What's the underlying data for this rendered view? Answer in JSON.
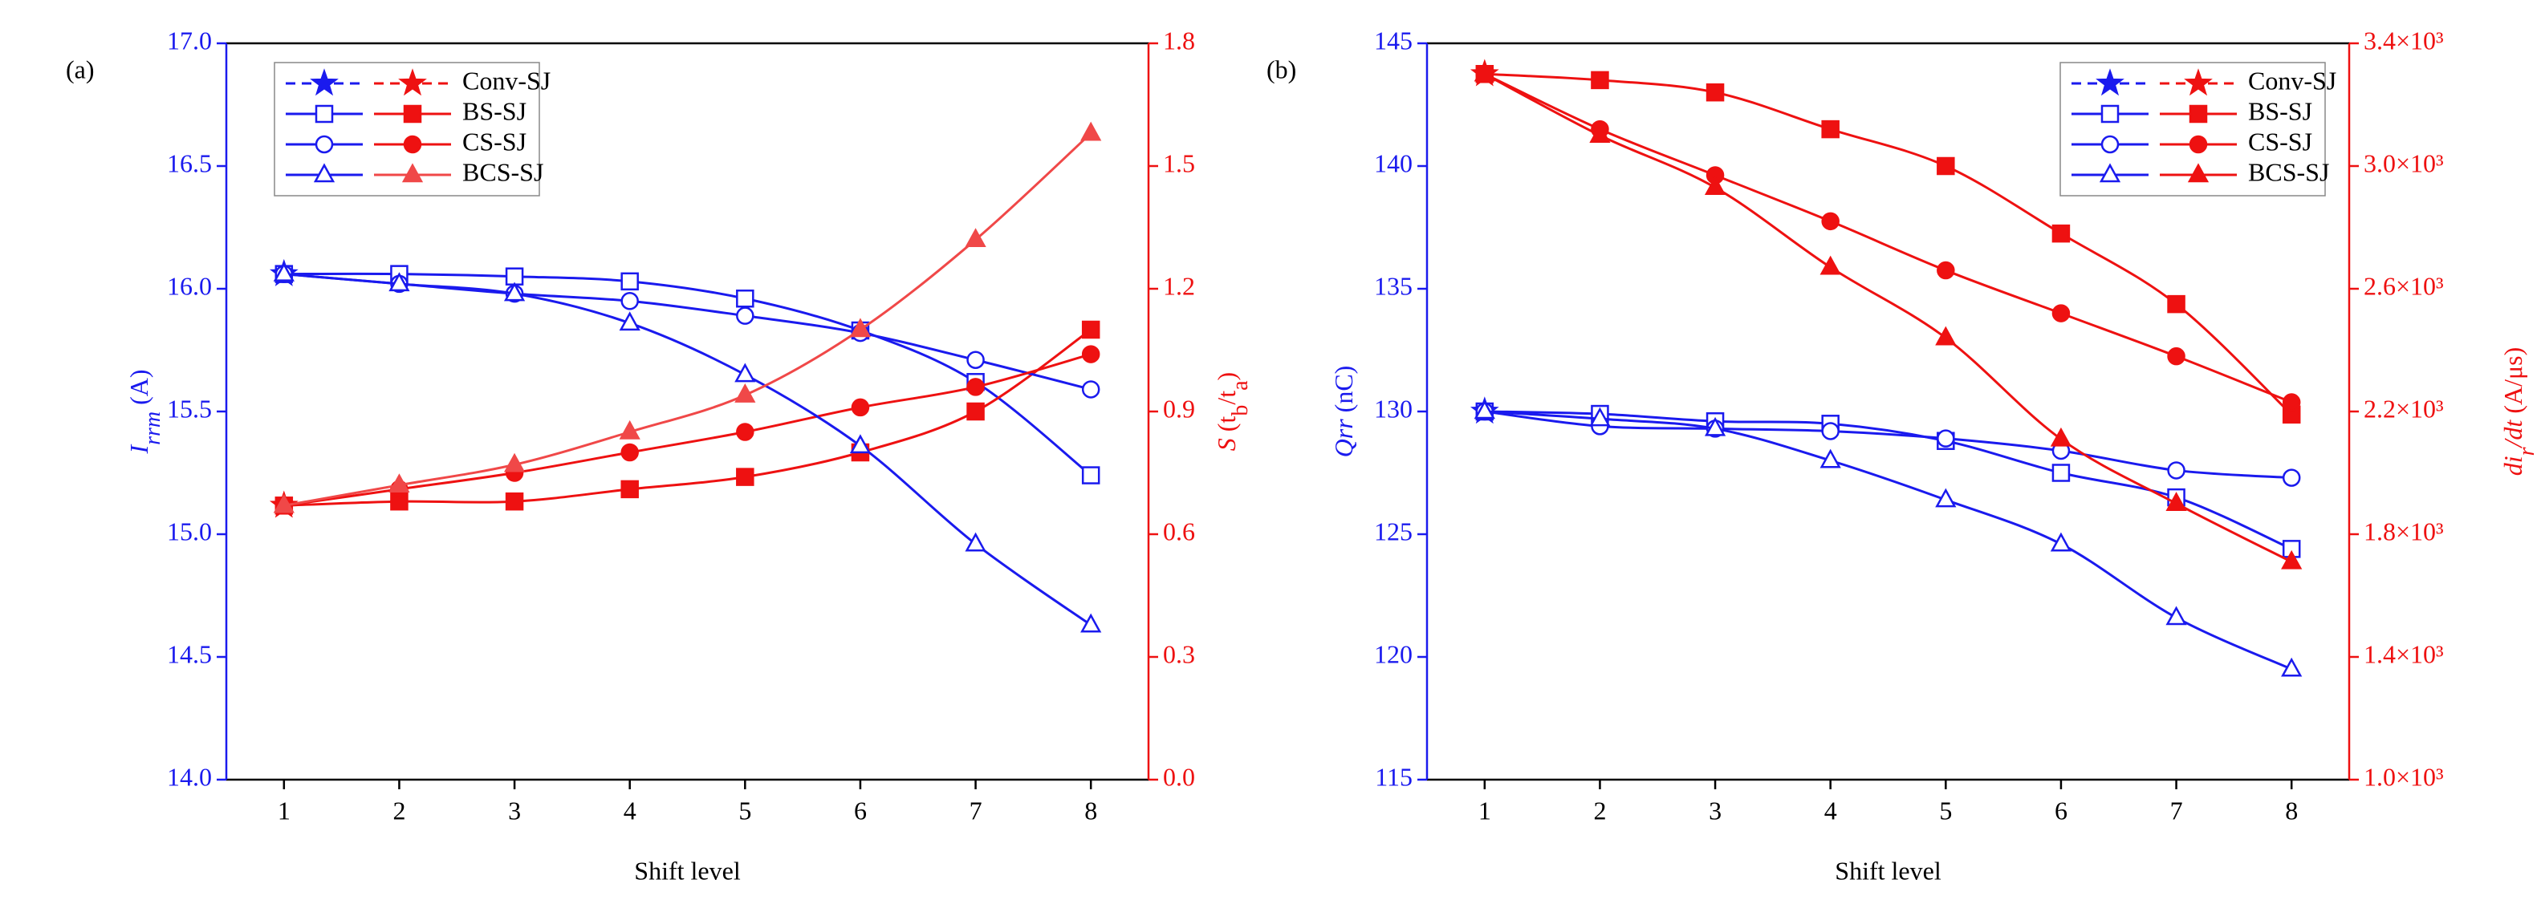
{
  "chart_data": [
    {
      "type": "line",
      "panel_label": "(a)",
      "xlabel": "Shift level",
      "ylabel": [
        {
          "text": "I",
          "italic": true
        },
        {
          "text": "rrm",
          "italic": true,
          "sub": true
        },
        {
          "text": " (A)"
        }
      ],
      "y2label": [
        {
          "text": "S",
          "italic": true
        },
        {
          "text": " (t"
        },
        {
          "text": "b",
          "sub": true
        },
        {
          "text": "/t"
        },
        {
          "text": "a",
          "sub": true
        },
        {
          "text": ")"
        }
      ],
      "x": [
        1,
        2,
        3,
        4,
        5,
        6,
        7,
        8
      ],
      "xlim": [
        0.5,
        8.5
      ],
      "xticks": [
        1,
        2,
        3,
        4,
        5,
        6,
        7,
        8
      ],
      "ylim": [
        14,
        17
      ],
      "yticks": [
        {
          "value": 14,
          "label": "14.0"
        },
        14.5,
        {
          "value": 15,
          "label": "15.0"
        },
        15.5,
        {
          "value": 16,
          "label": "16.0"
        },
        16.5,
        {
          "value": 17,
          "label": "17.0"
        }
      ],
      "y2lim": [
        0,
        1.8
      ],
      "y2ticks": [
        {
          "value": 0,
          "label": "0.0"
        },
        0.3,
        0.6,
        0.9,
        1.2,
        1.5,
        1.8
      ],
      "ycolor": "#1a1aee",
      "y2color": "#ee1111",
      "legend": "upper left",
      "series": [
        {
          "name": "Conv-SJ",
          "color": "#1a1aee",
          "marker": "star",
          "filled": true,
          "dashed": true,
          "values": [
            16.06,
            null,
            null,
            null,
            null,
            null,
            null,
            null
          ]
        },
        {
          "name": "Conv-SJ",
          "color": "#ee1111",
          "marker": "star",
          "filled": true,
          "dashed": true,
          "axis": "y2",
          "values": [
            0.67,
            null,
            null,
            null,
            null,
            null,
            null,
            null
          ]
        },
        {
          "name": "BS-SJ",
          "color": "#1a1aee",
          "marker": "square",
          "filled": false,
          "values": [
            16.06,
            16.06,
            16.05,
            16.03,
            15.96,
            15.83,
            15.62,
            15.24
          ]
        },
        {
          "name": "BS-SJ",
          "color": "#ee1111",
          "marker": "square",
          "filled": true,
          "axis": "y2",
          "values": [
            0.67,
            0.68,
            0.68,
            0.71,
            0.74,
            0.8,
            0.9,
            1.1
          ]
        },
        {
          "name": "CS-SJ",
          "color": "#1a1aee",
          "marker": "circle",
          "filled": false,
          "values": [
            16.06,
            16.02,
            15.98,
            15.95,
            15.89,
            15.82,
            15.71,
            15.59
          ]
        },
        {
          "name": "CS-SJ",
          "color": "#ee1111",
          "marker": "circle",
          "filled": true,
          "axis": "y2",
          "values": [
            0.67,
            0.71,
            0.75,
            0.8,
            0.85,
            0.91,
            0.96,
            1.04
          ]
        },
        {
          "name": "BCS-SJ",
          "color": "#1a1aee",
          "marker": "triangle",
          "filled": false,
          "values": [
            16.06,
            16.02,
            15.98,
            15.86,
            15.65,
            15.36,
            14.96,
            14.63
          ]
        },
        {
          "name": "BCS-SJ",
          "color": "#f04848",
          "marker": "triangle",
          "filled": true,
          "axis": "y2",
          "values": [
            0.67,
            0.72,
            0.77,
            0.85,
            0.94,
            1.1,
            1.32,
            1.58
          ]
        }
      ]
    },
    {
      "type": "line",
      "panel_label": "(b)",
      "xlabel": "Shift level",
      "ylabel": [
        {
          "text": "Qrr",
          "italic": true
        },
        {
          "text": " (nC)"
        }
      ],
      "y2label": [
        {
          "text": "di",
          "italic": true
        },
        {
          "text": "r",
          "italic": true,
          "sub": true
        },
        {
          "text": "/dt",
          "italic": true
        },
        {
          "text": " (A/μs)"
        }
      ],
      "x": [
        1,
        2,
        3,
        4,
        5,
        6,
        7,
        8
      ],
      "xlim": [
        0.5,
        8.5
      ],
      "xticks": [
        1,
        2,
        3,
        4,
        5,
        6,
        7,
        8
      ],
      "ylim": [
        115,
        145
      ],
      "yticks": [
        115,
        120,
        125,
        130,
        135,
        140,
        145
      ],
      "y2lim": [
        1000,
        3400
      ],
      "y2ticks": [
        {
          "value": 1000,
          "label": "1.0×10³"
        },
        {
          "value": 1400,
          "label": "1.4×10³"
        },
        {
          "value": 1800,
          "label": "1.8×10³"
        },
        {
          "value": 2200,
          "label": "2.2×10³"
        },
        {
          "value": 2600,
          "label": "2.6×10³"
        },
        {
          "value": 3000,
          "label": "3.0×10³"
        },
        {
          "value": 3400,
          "label": "3.4×10³"
        }
      ],
      "ycolor": "#1a1aee",
      "y2color": "#ee1111",
      "legend": "upper right",
      "series": [
        {
          "name": "Conv-SJ",
          "color": "#1a1aee",
          "marker": "star",
          "filled": true,
          "dashed": true,
          "values": [
            130,
            null,
            null,
            null,
            null,
            null,
            null,
            null
          ]
        },
        {
          "name": "Conv-SJ",
          "color": "#ee1111",
          "marker": "star",
          "filled": true,
          "dashed": true,
          "axis": "y2",
          "values": [
            3300,
            null,
            null,
            null,
            null,
            null,
            null,
            null
          ]
        },
        {
          "name": "BS-SJ",
          "color": "#1a1aee",
          "marker": "square",
          "filled": false,
          "values": [
            130,
            129.9,
            129.6,
            129.5,
            128.8,
            127.5,
            126.5,
            124.4
          ]
        },
        {
          "name": "BS-SJ",
          "color": "#ee1111",
          "marker": "square",
          "filled": true,
          "axis": "y2",
          "values": [
            3300,
            3280,
            3240,
            3120,
            3000,
            2780,
            2550,
            2190
          ]
        },
        {
          "name": "CS-SJ",
          "color": "#1a1aee",
          "marker": "circle",
          "filled": false,
          "values": [
            130,
            129.4,
            129.3,
            129.2,
            128.9,
            128.4,
            127.6,
            127.3
          ]
        },
        {
          "name": "CS-SJ",
          "color": "#ee1111",
          "marker": "circle",
          "filled": true,
          "axis": "y2",
          "values": [
            3300,
            3120,
            2970,
            2820,
            2660,
            2520,
            2380,
            2230
          ]
        },
        {
          "name": "BCS-SJ",
          "color": "#1a1aee",
          "marker": "triangle",
          "filled": false,
          "values": [
            130,
            129.7,
            129.3,
            128,
            126.4,
            124.6,
            121.6,
            119.5
          ]
        },
        {
          "name": "BCS-SJ",
          "color": "#ee1111",
          "marker": "triangle",
          "filled": true,
          "axis": "y2",
          "values": [
            3300,
            3100,
            2930,
            2670,
            2440,
            2110,
            1900,
            1710
          ]
        }
      ]
    }
  ]
}
